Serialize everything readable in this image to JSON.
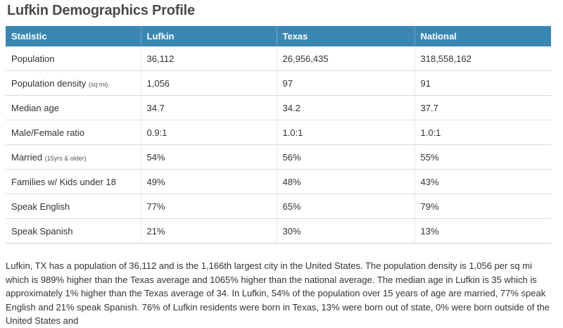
{
  "title": "Lufkin Demographics Profile",
  "headers": [
    "Statistic",
    "Lufkin",
    "Texas",
    "National"
  ],
  "rows": [
    {
      "label": "Population",
      "note": "",
      "values": [
        "36,112",
        "26,956,435",
        "318,558,162"
      ]
    },
    {
      "label": "Population density",
      "note": "(sq mi)",
      "values": [
        "1,056",
        "97",
        "91"
      ]
    },
    {
      "label": "Median age",
      "note": "",
      "values": [
        "34.7",
        "34.2",
        "37.7"
      ]
    },
    {
      "label": "Male/Female ratio",
      "note": "",
      "values": [
        "0.9:1",
        "1.0:1",
        "1.0:1"
      ]
    },
    {
      "label": "Married",
      "note": "(15yrs & older)",
      "values": [
        "54%",
        "56%",
        "55%"
      ]
    },
    {
      "label": "Families w/ Kids under 18",
      "note": "",
      "values": [
        "49%",
        "48%",
        "43%"
      ]
    },
    {
      "label": "Speak English",
      "note": "",
      "values": [
        "77%",
        "65%",
        "79%"
      ]
    },
    {
      "label": "Speak Spanish",
      "note": "",
      "values": [
        "21%",
        "30%",
        "13%"
      ]
    }
  ],
  "summary": "Lufkin, TX has a population of 36,112 and is the 1,166th largest city in the United States. The population density is 1,056 per sq mi which is 989% higher than the Texas average and 1065% higher than the national average. The median age in Lufkin is 35 which is approximately 1% higher than the Texas average of 34. In Lufkin, 54% of the population over 15 years of age are married, 77% speak English and 21% speak Spanish. 76% of Lufkin residents were born in Texas, 13% were born out of state, 0% were born outside of the United States and"
}
